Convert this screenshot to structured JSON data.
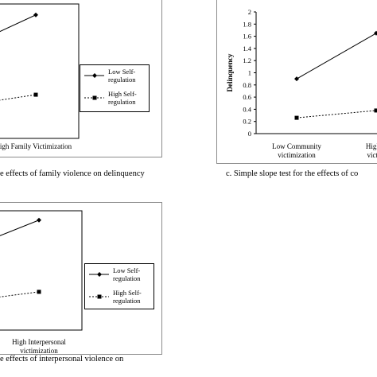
{
  "chart_data": [
    {
      "id": "family",
      "type": "line",
      "caption": "e effects of family violence on delinquency",
      "categories": [
        "",
        "igh Family Victimization"
      ],
      "series": [
        {
          "name": "Low Self-regulation",
          "legend_lines": [
            "Low Self-",
            "regulation"
          ],
          "values": [
            1.2,
            1.75
          ]
        },
        {
          "name": "High Self-regulation",
          "legend_lines": [
            "High Self-",
            "regulation"
          ],
          "values": [
            0.3,
            0.48
          ]
        }
      ],
      "ylim": [
        0,
        2
      ]
    },
    {
      "id": "community",
      "type": "line",
      "caption": "c. Simple slope test for the effects of co",
      "ylabel": "Delinquency",
      "yticks": [
        "0",
        "0.2",
        "0.4",
        "0.6",
        "0.8",
        "1",
        "1.2",
        "1.4",
        "1.6",
        "1.8",
        "2"
      ],
      "categories": [
        [
          "Low Community",
          "victimization"
        ],
        [
          "High C",
          "victim"
        ]
      ],
      "series": [
        {
          "name": "Low Self-regulation",
          "values": [
            0.9,
            1.65
          ]
        },
        {
          "name": "High Self-regulation",
          "values": [
            0.26,
            0.38
          ]
        }
      ],
      "ylim": [
        0,
        2
      ]
    },
    {
      "id": "interpersonal",
      "type": "line",
      "caption": "e effects of interpersonal violence on",
      "categories": [
        "",
        [
          "High Interpersonal",
          "victimization"
        ]
      ],
      "series": [
        {
          "name": "Low Self-regulation",
          "legend_lines": [
            "Low Self-",
            "regulation"
          ],
          "values": [
            1.2,
            1.75
          ]
        },
        {
          "name": "High Self-regulation",
          "legend_lines": [
            "High Self-",
            "regulation"
          ],
          "values": [
            0.3,
            0.48
          ]
        }
      ],
      "ylim": [
        0,
        2
      ]
    }
  ],
  "colors": {
    "line": "#000000",
    "frame": "#8c8c8c"
  }
}
